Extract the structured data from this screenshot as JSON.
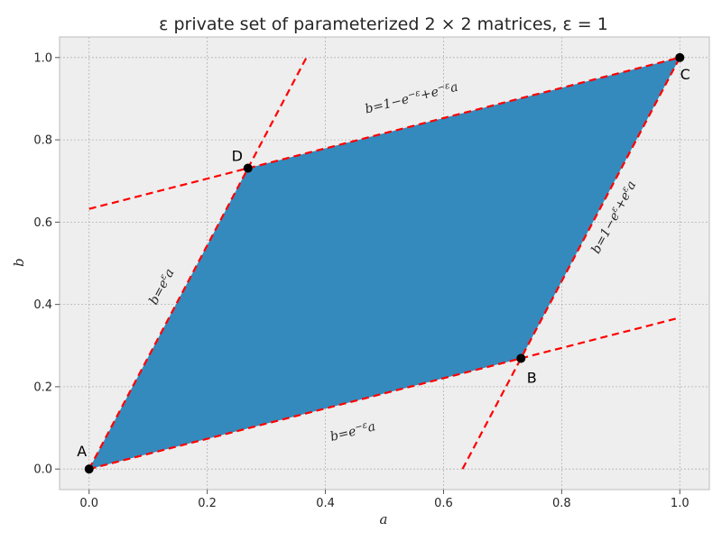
{
  "chart_data": {
    "type": "scatter",
    "title": "ε private set of parameterized 2 × 2 matrices, ε = 1",
    "xlabel": "a",
    "ylabel": "b",
    "xlim": [
      -0.05,
      1.05
    ],
    "ylim": [
      -0.05,
      1.05
    ],
    "x_ticks": [
      0.0,
      0.2,
      0.4,
      0.6,
      0.8,
      1.0
    ],
    "y_ticks": [
      0.0,
      0.2,
      0.4,
      0.6,
      0.8,
      1.0
    ],
    "x_tick_labels": [
      "0.0",
      "0.2",
      "0.4",
      "0.6",
      "0.8",
      "1.0"
    ],
    "y_tick_labels": [
      "0.0",
      "0.2",
      "0.4",
      "0.6",
      "0.8",
      "1.0"
    ],
    "grid": true,
    "epsilon": 1,
    "region": {
      "fill": "#348abd",
      "vertices": [
        {
          "label": "A",
          "x": 0.0,
          "y": 0.0
        },
        {
          "label": "B",
          "x": 0.7311,
          "y": 0.2689
        },
        {
          "label": "C",
          "x": 1.0,
          "y": 1.0
        },
        {
          "label": "D",
          "x": 0.2689,
          "y": 0.7311
        }
      ]
    },
    "boundary_lines": [
      {
        "label": "b = e^ε a",
        "color": "#ff0000",
        "x": [
          0.0,
          0.3679
        ],
        "y": [
          0.0,
          1.0
        ]
      },
      {
        "label": "b = e^−ε a",
        "color": "#ff0000",
        "x": [
          0.0,
          1.0
        ],
        "y": [
          0.0,
          0.3679
        ]
      },
      {
        "label": "b = 1 − e^−ε + e^−ε a",
        "color": "#ff0000",
        "x": [
          0.0,
          1.0
        ],
        "y": [
          0.6321,
          1.0
        ]
      },
      {
        "label": "b = 1 − e^ε + e^ε a",
        "color": "#ff0000",
        "x": [
          0.6321,
          1.0
        ],
        "y": [
          0.0,
          1.0
        ]
      }
    ],
    "points": [
      {
        "label": "A",
        "x": 0.0,
        "y": 0.0
      },
      {
        "label": "B",
        "x": 0.7311,
        "y": 0.2689
      },
      {
        "label": "C",
        "x": 1.0,
        "y": 1.0
      },
      {
        "label": "D",
        "x": 0.2689,
        "y": 0.7311
      }
    ],
    "colors": {
      "plot_background": "#eeeeee",
      "grid": "#b2b2b2",
      "frame": "#bcbcbc"
    }
  }
}
